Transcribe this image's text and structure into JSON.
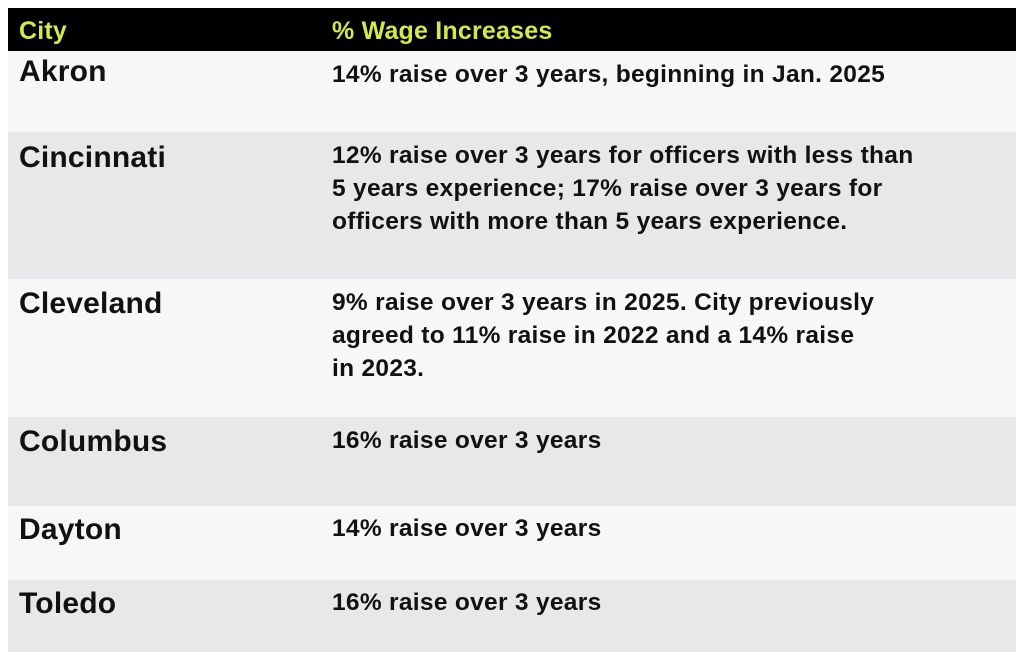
{
  "table": {
    "headers": {
      "city": "City",
      "wage": "% Wage Increases"
    },
    "rows": [
      {
        "city": "Akron",
        "wage_lines": [
          "14% raise over 3 years, beginning in Jan. 2025"
        ]
      },
      {
        "city": "Cincinnati",
        "wage_lines": [
          "12% raise over 3 years for officers with less than",
          "5 years experience; 17% raise over 3 years for",
          "officers with more than 5 years experience."
        ]
      },
      {
        "city": "Cleveland",
        "wage_lines": [
          "9% raise over 3 years in 2025. City previously",
          "agreed to 11% raise in 2022 and a 14% raise",
          "in 2023."
        ]
      },
      {
        "city": "Columbus",
        "wage_lines": [
          "16% raise over 3 years"
        ]
      },
      {
        "city": "Dayton",
        "wage_lines": [
          "14% raise over 3 years"
        ]
      },
      {
        "city": "Toledo",
        "wage_lines": [
          "16% raise over 3 years"
        ]
      }
    ]
  },
  "colors": {
    "header_bg": "#000000",
    "header_text": "#d4e84a",
    "row_light": "#f7f7f7",
    "row_dark": "#e8e8ea",
    "body_text": "#111111"
  }
}
